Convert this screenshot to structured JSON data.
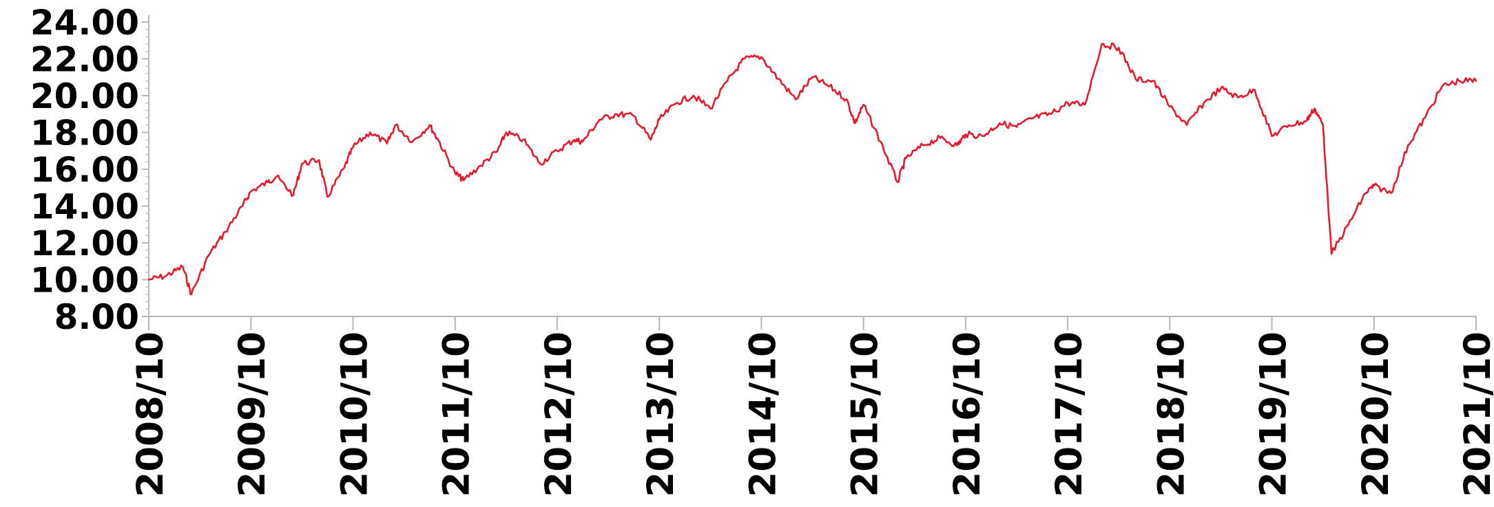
{
  "chart_data": {
    "type": "line",
    "title": "",
    "xlabel": "",
    "ylabel": "",
    "grid": false,
    "legend": "none",
    "ylim": [
      8,
      24
    ],
    "xlim": [
      "2008-10",
      "2021-10"
    ],
    "y_ticks": [
      "8.00",
      "10.00",
      "12.00",
      "14.00",
      "16.00",
      "18.00",
      "20.00",
      "22.00",
      "24.00"
    ],
    "x_ticks": [
      "2008/10",
      "2009/10",
      "2010/10",
      "2011/10",
      "2012/10",
      "2013/10",
      "2014/10",
      "2015/10",
      "2016/10",
      "2017/10",
      "2018/10",
      "2019/10",
      "2020/10",
      "2021/10"
    ],
    "colors": {
      "series": "#e8192c",
      "axis": "#b4b4c4"
    },
    "series": [
      {
        "x": [
          "2008-10",
          "2008-12",
          "2009-02",
          "2009-03",
          "2009-05",
          "2009-07",
          "2009-09",
          "2009-10",
          "2009-12",
          "2010-01",
          "2010-03",
          "2010-04",
          "2010-06",
          "2010-07",
          "2010-09",
          "2010-10",
          "2010-12",
          "2011-02",
          "2011-03",
          "2011-05",
          "2011-07",
          "2011-08",
          "2011-10",
          "2011-11",
          "2012-01",
          "2012-03",
          "2012-04",
          "2012-06",
          "2012-08",
          "2012-10",
          "2012-12",
          "2013-01",
          "2013-03",
          "2013-05",
          "2013-07",
          "2013-09",
          "2013-10",
          "2013-12",
          "2014-02",
          "2014-04",
          "2014-06",
          "2014-08",
          "2014-10",
          "2014-12",
          "2015-02",
          "2015-04",
          "2015-06",
          "2015-08",
          "2015-09",
          "2015-10",
          "2015-12",
          "2016-02",
          "2016-03",
          "2016-05",
          "2016-07",
          "2016-09",
          "2016-10",
          "2016-12",
          "2017-02",
          "2017-04",
          "2017-06",
          "2017-08",
          "2017-10",
          "2017-12",
          "2018-02",
          "2018-04",
          "2018-06",
          "2018-08",
          "2018-10",
          "2018-12",
          "2019-02",
          "2019-04",
          "2019-06",
          "2019-08",
          "2019-10",
          "2019-12",
          "2020-02",
          "2020-03",
          "2020-04",
          "2020-05",
          "2020-07",
          "2020-09",
          "2020-10",
          "2020-12",
          "2021-02",
          "2021-04",
          "2021-06",
          "2021-08",
          "2021-10"
        ],
        "values": [
          10.0,
          10.2,
          10.7,
          9.2,
          11.3,
          12.6,
          14.0,
          14.8,
          15.3,
          15.6,
          14.6,
          16.3,
          16.5,
          14.5,
          16.1,
          17.2,
          18.0,
          17.4,
          18.4,
          17.5,
          18.4,
          17.6,
          15.8,
          15.4,
          16.2,
          17.0,
          18.0,
          17.6,
          16.3,
          17.0,
          17.6,
          17.5,
          18.7,
          19.0,
          18.9,
          17.6,
          18.7,
          19.6,
          20.0,
          19.3,
          20.8,
          22.0,
          22.1,
          20.9,
          19.8,
          21.0,
          20.5,
          19.8,
          18.5,
          19.5,
          17.5,
          15.3,
          16.6,
          17.3,
          17.7,
          17.3,
          17.9,
          17.8,
          18.5,
          18.3,
          18.8,
          19.0,
          19.6,
          19.5,
          22.8,
          22.6,
          20.9,
          20.8,
          19.4,
          18.4,
          19.6,
          20.4,
          19.9,
          20.3,
          17.8,
          18.4,
          18.6,
          19.3,
          18.4,
          11.4,
          13.0,
          14.7,
          15.1,
          14.7,
          17.3,
          18.8,
          20.5,
          20.8,
          20.8
        ]
      }
    ]
  }
}
